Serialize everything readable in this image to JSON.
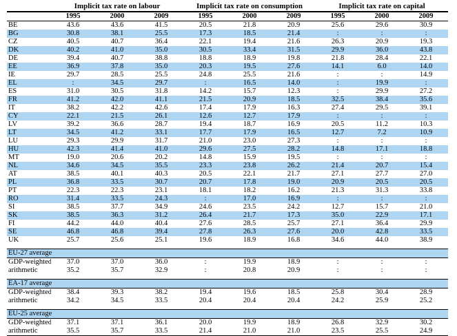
{
  "table": {
    "group_headers": [
      "Implicit tax rate on labour",
      "Implicit tax rate on consumption",
      "Implicit tax rate on capital"
    ],
    "years": [
      "1995",
      "2000",
      "2009"
    ],
    "missing_symbol": ":",
    "countries": [
      {
        "code": "BE",
        "values": [
          "43.6",
          "43.6",
          "41.5",
          "20.5",
          "21.8",
          "20.9",
          "25.6",
          "29.6",
          "30.9"
        ]
      },
      {
        "code": "BG",
        "values": [
          "30.8",
          "38.1",
          "25.5",
          "17.3",
          "18.5",
          "21.4",
          ":",
          ":",
          ":"
        ]
      },
      {
        "code": "CZ",
        "values": [
          "40.5",
          "40.7",
          "36.4",
          "22.1",
          "19.4",
          "21.6",
          "26.3",
          "20.9",
          "19.3"
        ]
      },
      {
        "code": "DK",
        "values": [
          "40.2",
          "41.0",
          "35.0",
          "30.5",
          "33.4",
          "31.5",
          "29.9",
          "36.0",
          "43.8"
        ]
      },
      {
        "code": "DE",
        "values": [
          "39.4",
          "40.7",
          "38.8",
          "18.8",
          "18.9",
          "19.8",
          "21.8",
          "28.4",
          "22.1"
        ]
      },
      {
        "code": "EE",
        "values": [
          "36.9",
          "37.8",
          "35.0",
          "20.3",
          "19.5",
          "27.6",
          "14.1",
          "6.0",
          "14.0"
        ]
      },
      {
        "code": "IE",
        "values": [
          "29.7",
          "28.5",
          "25.5",
          "24.8",
          "25.5",
          "21.6",
          ":",
          ":",
          "14.9"
        ]
      },
      {
        "code": "EL",
        "values": [
          ":",
          "34.5",
          "29.7",
          ":",
          "16.5",
          "14.0",
          ":",
          "19.9",
          ":"
        ]
      },
      {
        "code": "ES",
        "values": [
          "31.0",
          "30.5",
          "31.8",
          "14.2",
          "15.7",
          "12.3",
          ":",
          "29.9",
          "27.2"
        ]
      },
      {
        "code": "FR",
        "values": [
          "41.2",
          "42.0",
          "41.1",
          "21.5",
          "20.9",
          "18.5",
          "32.5",
          "38.4",
          "35.6"
        ]
      },
      {
        "code": "IT",
        "values": [
          "38.2",
          "42.2",
          "42.6",
          "17.4",
          "17.9",
          "16.3",
          "27.4",
          "29.5",
          "39.1"
        ]
      },
      {
        "code": "CY",
        "values": [
          "22.1",
          "21.5",
          "26.1",
          "12.6",
          "12.7",
          "17.9",
          ":",
          ":",
          ":"
        ]
      },
      {
        "code": "LV",
        "values": [
          "39.2",
          "36.6",
          "28.7",
          "19.4",
          "18.7",
          "16.9",
          "20.5",
          "11.2",
          "10.3"
        ]
      },
      {
        "code": "LT",
        "values": [
          "34.5",
          "41.2",
          "33.1",
          "17.7",
          "17.9",
          "16.5",
          "12.7",
          "7.2",
          "10.9"
        ]
      },
      {
        "code": "LU",
        "values": [
          "29.3",
          "29.9",
          "31.7",
          "21.0",
          "23.0",
          "27.3",
          ":",
          ":",
          ":"
        ]
      },
      {
        "code": "HU",
        "values": [
          "42.3",
          "41.4",
          "41.0",
          "29.6",
          "27.5",
          "28.2",
          "14.8",
          "17.1",
          "18.8"
        ]
      },
      {
        "code": "MT",
        "values": [
          "19.0",
          "20.6",
          "20.2",
          "14.8",
          "15.9",
          "19.5",
          ":",
          ":",
          ":"
        ]
      },
      {
        "code": "NL",
        "values": [
          "34.6",
          "34.5",
          "35.5",
          "23.3",
          "23.8",
          "26.2",
          "21.4",
          "20.7",
          "15.4"
        ]
      },
      {
        "code": "AT",
        "values": [
          "38.5",
          "40.1",
          "40.3",
          "20.5",
          "22.1",
          "21.7",
          "27.1",
          "27.7",
          "27.0"
        ]
      },
      {
        "code": "PL",
        "values": [
          "36.8",
          "33.5",
          "30.7",
          "20.7",
          "17.8",
          "19.0",
          "20.9",
          "20.5",
          "20.5"
        ]
      },
      {
        "code": "PT",
        "values": [
          "22.3",
          "22.3",
          "23.1",
          "18.1",
          "18.2",
          "16.2",
          "21.3",
          "31.3",
          "33.8"
        ]
      },
      {
        "code": "RO",
        "values": [
          "31.4",
          "33.5",
          "24.3",
          ":",
          "17.0",
          "16.9",
          ":",
          ":",
          ":"
        ]
      },
      {
        "code": "SI",
        "values": [
          "38.5",
          "37.7",
          "34.9",
          "24.6",
          "23.5",
          "24.2",
          "12.7",
          "15.7",
          "21.0"
        ]
      },
      {
        "code": "SK",
        "values": [
          "38.5",
          "36.3",
          "31.2",
          "26.4",
          "21.7",
          "17.3",
          "35.0",
          "22.9",
          "17.1"
        ]
      },
      {
        "code": "FI",
        "values": [
          "44.2",
          "44.0",
          "40.4",
          "27.6",
          "28.5",
          "25.7",
          "27.1",
          "36.4",
          "29.9"
        ]
      },
      {
        "code": "SE",
        "values": [
          "46.8",
          "46.8",
          "39.4",
          "27.8",
          "26.3",
          "27.6",
          "20.0",
          "42.8",
          "33.5"
        ]
      },
      {
        "code": "UK",
        "values": [
          "25.7",
          "25.6",
          "25.1",
          "19.6",
          "18.9",
          "16.8",
          "34.6",
          "44.0",
          "38.9"
        ]
      }
    ],
    "aggregate_sections": [
      {
        "label": "EU-27 average",
        "rows": [
          {
            "label": "GDP-weighted",
            "values": [
              "37.0",
              "37.0",
              "36.0",
              ":",
              "19.9",
              "18.9",
              ":",
              ":",
              ":"
            ]
          },
          {
            "label": "arithmetic",
            "values": [
              "35.2",
              "35.7",
              "32.9",
              ":",
              "20.8",
              "20.9",
              ":",
              ":",
              ":"
            ]
          }
        ]
      },
      {
        "label": "EA-17 average",
        "rows": [
          {
            "label": "GDP-weighted",
            "values": [
              "38.4",
              "39.3",
              "38.2",
              "19.4",
              "19.6",
              "18.5",
              "25.8",
              "30.4",
              "28.9"
            ]
          },
          {
            "label": "arithmetic",
            "values": [
              "34.2",
              "34.5",
              "33.5",
              "20.4",
              "20.4",
              "20.4",
              "24.2",
              "25.9",
              "25.2"
            ]
          }
        ]
      },
      {
        "label": "EU-25 average",
        "rows": [
          {
            "label": "GDP-weighted",
            "values": [
              "37.1",
              "37.1",
              "36.1",
              "20.0",
              "19.9",
              "18.9",
              "26.8",
              "32.9",
              "30.2"
            ]
          },
          {
            "label": "arithmetic",
            "values": [
              "35.5",
              "35.7",
              "33.5",
              "21.4",
              "21.0",
              "21.0",
              "23.5",
              "25.5",
              "24.9"
            ]
          }
        ]
      }
    ]
  },
  "colors": {
    "stripe_blue": "#aed6f3",
    "rule_black": "#000000",
    "text": "#000000"
  }
}
